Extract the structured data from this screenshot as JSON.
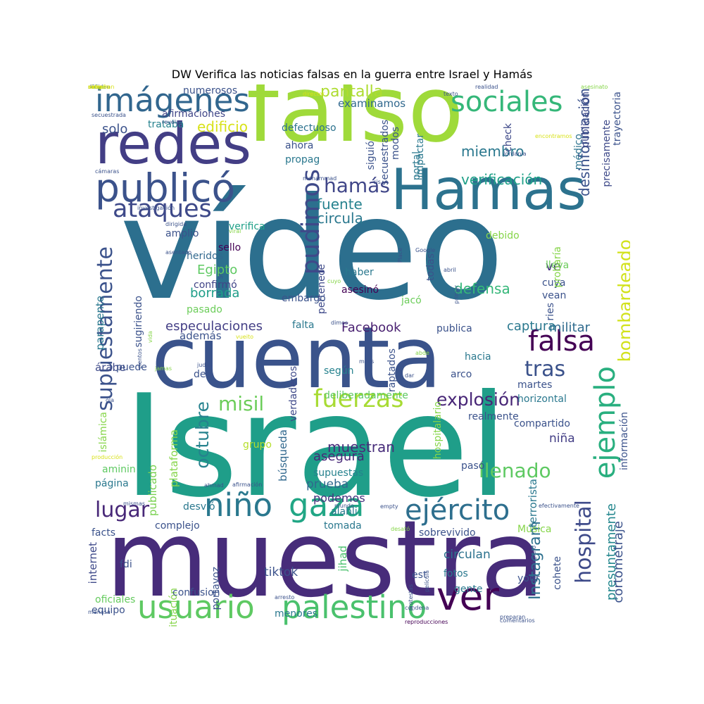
{
  "title": "DW Verifica las noticias falsas en la guerra entre Israel y Hamás",
  "words": [
    {
      "text": "vídeo",
      "color": "#2c6f8e"
    },
    {
      "text": "Israel",
      "color": "#1f9e89"
    },
    {
      "text": "muestra",
      "color": "#472c7a"
    },
    {
      "text": "cuenta",
      "color": "#3a538b"
    },
    {
      "text": "falso",
      "color": "#9fda3a"
    },
    {
      "text": "Hamas",
      "color": "#2c728e"
    },
    {
      "text": "redes",
      "color": "#433e85"
    },
    {
      "text": "publicó",
      "color": "#3b528b"
    },
    {
      "text": "imágenes",
      "color": "#31668e"
    },
    {
      "text": "sociales",
      "color": "#35b779"
    },
    {
      "text": "ver",
      "color": "#440154"
    },
    {
      "text": "usuario",
      "color": "#5ec962"
    },
    {
      "text": "palestino",
      "color": "#4ac16d"
    },
    {
      "text": "niño",
      "color": "#2a788e"
    },
    {
      "text": "gaza",
      "color": "#21a685"
    },
    {
      "text": "ejército",
      "color": "#2e6f8e"
    },
    {
      "text": "falsa",
      "color": "#440154"
    },
    {
      "text": "ataques",
      "color": "#3e4989"
    },
    {
      "text": "supuestamente",
      "color": "#3b528b"
    },
    {
      "text": "ejemplo",
      "color": "#29af7f"
    },
    {
      "text": "bombardeado",
      "color": "#d2e21b"
    },
    {
      "text": "fuerzas",
      "color": "#a8db34"
    },
    {
      "text": "hospital",
      "color": "#3e4a89"
    },
    {
      "text": "pudimos",
      "color": "#3e4989"
    },
    {
      "text": "lugar",
      "color": "#482878"
    },
    {
      "text": "misil",
      "color": "#6ccd5a"
    },
    {
      "text": "explosión",
      "color": "#482677"
    },
    {
      "text": "tras",
      "color": "#3b528b"
    },
    {
      "text": "hamás",
      "color": "#404688"
    },
    {
      "text": "llenado",
      "color": "#5ec962"
    },
    {
      "text": "octubre",
      "color": "#26828e"
    },
    {
      "text": "pantalla",
      "color": "#addc30"
    },
    {
      "text": "muestran",
      "color": "#472c7a"
    },
    {
      "text": "desinformación",
      "color": "#3b528b"
    },
    {
      "text": "Instagram",
      "color": "#2d708e"
    },
    {
      "text": "verificación",
      "color": "#1fa088"
    },
    {
      "text": "miembro",
      "color": "#2a788e"
    },
    {
      "text": "especulaciones",
      "color": "#433e85"
    },
    {
      "text": "Facebook",
      "color": "#481f70"
    },
    {
      "text": "presuntamente",
      "color": "#24878e"
    },
    {
      "text": "cortometraje",
      "color": "#3b528b"
    },
    {
      "text": "militar",
      "color": "#2f6b8e"
    },
    {
      "text": "captura",
      "color": "#2a788e"
    },
    {
      "text": "defensa",
      "color": "#35b779"
    },
    {
      "text": "circula",
      "color": "#2a788e"
    },
    {
      "text": "fuente",
      "color": "#26828e"
    },
    {
      "text": "edificio",
      "color": "#d8e219"
    },
    {
      "text": "solo",
      "color": "#3b528b"
    },
    {
      "text": "examinamos",
      "color": "#31688e"
    },
    {
      "text": "Egipto",
      "color": "#5ec962"
    },
    {
      "text": "borrada",
      "color": "#1f9e89"
    },
    {
      "text": "parapente",
      "color": "#2a788e"
    },
    {
      "text": "prueba",
      "color": "#31688e"
    },
    {
      "text": "podemos",
      "color": "#46327e"
    },
    {
      "text": "asegura",
      "color": "#482878"
    },
    {
      "text": "niña",
      "color": "#433e85"
    },
    {
      "text": "tiktok",
      "color": "#3b528b"
    },
    {
      "text": "circulan",
      "color": "#2c728e"
    },
    {
      "text": "internet",
      "color": "#3e4989"
    },
    {
      "text": "ve",
      "color": "#46327e"
    },
    {
      "text": "búsqueda",
      "color": "#31688e"
    },
    {
      "text": "plataforma",
      "color": "#86d549"
    },
    {
      "text": "publicado",
      "color": "#7ad151"
    },
    {
      "text": "jihad",
      "color": "#4ac16d"
    },
    {
      "text": "oficiales",
      "color": "#65cb5e"
    },
    {
      "text": "Música",
      "color": "#86d549"
    },
    {
      "text": "terrorista",
      "color": "#2a788e"
    },
    {
      "text": "árabe",
      "color": "#3e4a89"
    },
    {
      "text": "además",
      "color": "#3b528b"
    },
    {
      "text": "debido",
      "color": "#86d549"
    },
    {
      "text": "confirmó",
      "color": "#414487"
    },
    {
      "text": "heridos",
      "color": "#31688e"
    },
    {
      "text": "sello",
      "color": "#440154"
    },
    {
      "text": "amplio",
      "color": "#3b528b"
    },
    {
      "text": "verifica",
      "color": "#1fa088"
    },
    {
      "text": "trataba",
      "color": "#26828e"
    },
    {
      "text": "afirmaciones",
      "color": "#404688"
    },
    {
      "text": "numerosos",
      "color": "#3b528b"
    },
    {
      "text": "defectuoso",
      "color": "#2c728e"
    },
    {
      "text": "ahora",
      "color": "#3b528b"
    },
    {
      "text": "propag",
      "color": "#2a788e"
    },
    {
      "text": "impactar",
      "color": "#2a788e"
    },
    {
      "text": "portal",
      "color": "#2a788e"
    },
    {
      "text": "check",
      "color": "#3e4989"
    },
    {
      "text": "modos",
      "color": "#3b528b"
    },
    {
      "text": "siguió",
      "color": "#3b528b"
    },
    {
      "text": "secuestrados",
      "color": "#3b528b"
    },
    {
      "text": "trayectoria",
      "color": "#3b528b"
    },
    {
      "text": "publicación",
      "color": "#3e4989"
    },
    {
      "text": "médico",
      "color": "#2c728e"
    },
    {
      "text": "precisamente",
      "color": "#3e4989"
    },
    {
      "text": "haber",
      "color": "#2a788e"
    },
    {
      "text": "asesinó",
      "color": "#440154"
    },
    {
      "text": "pertenece",
      "color": "#3e4989"
    },
    {
      "text": "embargo",
      "color": "#3b528b"
    },
    {
      "text": "falta",
      "color": "#2a788e"
    },
    {
      "text": "pasado",
      "color": "#6ccd5a"
    },
    {
      "text": "sugiriendo",
      "color": "#3b528b"
    },
    {
      "text": "puede",
      "color": "#3b528b"
    },
    {
      "text": "deb",
      "color": "#3b528b"
    },
    {
      "text": "según",
      "color": "#26828e"
    },
    {
      "text": "verdaderos",
      "color": "#3e4989"
    },
    {
      "text": "raptados",
      "color": "#3b528b"
    },
    {
      "text": "deliberadamente",
      "color": "#5ec962"
    },
    {
      "text": "realmente",
      "color": "#3b528b"
    },
    {
      "text": "compartido",
      "color": "#3b528b"
    },
    {
      "text": "hacia",
      "color": "#2a788e"
    },
    {
      "text": "arco",
      "color": "#3b528b"
    },
    {
      "text": "martes",
      "color": "#3b528b"
    },
    {
      "text": "horizontal",
      "color": "#2a788e"
    },
    {
      "text": "publica",
      "color": "#3b528b"
    },
    {
      "text": "jacó",
      "color": "#6ccd5a"
    },
    {
      "text": "lleva",
      "color": "#6ccd5a"
    },
    {
      "text": "cuya",
      "color": "#3b528b"
    },
    {
      "text": "vean",
      "color": "#3b528b"
    },
    {
      "text": "probaría",
      "color": "#86d549"
    },
    {
      "text": "ries",
      "color": "#3b528b"
    },
    {
      "text": "todas",
      "color": "#3b528b"
    },
    {
      "text": "grupo",
      "color": "#b5de2b"
    },
    {
      "text": "supuestas",
      "color": "#26828e"
    },
    {
      "text": "hospitalario",
      "color": "#86d549"
    },
    {
      "text": "pasó",
      "color": "#3b528b"
    },
    {
      "text": "información",
      "color": "#3b528b"
    },
    {
      "text": "islámica",
      "color": "#86d549"
    },
    {
      "text": "aminin",
      "color": "#5ec962"
    },
    {
      "text": "página",
      "color": "#2a788e"
    },
    {
      "text": "desvió",
      "color": "#2a788e"
    },
    {
      "text": "complejo",
      "color": "#3b528b"
    },
    {
      "text": "tomada",
      "color": "#2a788e"
    },
    {
      "text": "alahli",
      "color": "#2a788e"
    },
    {
      "text": "sobrevivido",
      "color": "#3b528b"
    },
    {
      "text": "facts",
      "color": "#3b528b"
    },
    {
      "text": "fdi",
      "color": "#3b528b"
    },
    {
      "text": "portavoz",
      "color": "#3b528b"
    },
    {
      "text": "situación",
      "color": "#86d549"
    },
    {
      "text": "confusion",
      "color": "#3b528b"
    },
    {
      "text": "equipo",
      "color": "#3b528b"
    },
    {
      "text": "menores",
      "color": "#2a788e"
    },
    {
      "text": "est",
      "color": "#3b528b"
    },
    {
      "text": "fotos",
      "color": "#2a788e"
    },
    {
      "text": "gente",
      "color": "#2a788e"
    },
    {
      "text": "cohete",
      "color": "#3b528b"
    },
    {
      "text": "your",
      "color": "#3b528b"
    },
    {
      "text": "preparan",
      "color": "#3b528b"
    },
    {
      "text": "comentarios",
      "color": "#3b528b"
    },
    {
      "text": "reproducciones",
      "color": "#440154"
    },
    {
      "text": "condena",
      "color": "#3b528b"
    },
    {
      "text": "protestas",
      "color": "#3b528b"
    },
    {
      "text": "arresto",
      "color": "#3b528b"
    },
    {
      "text": "película",
      "color": "#3b528b"
    },
    {
      "text": "camarógrafo",
      "color": "#3b528b"
    },
    {
      "text": "desató",
      "color": "#86d549"
    },
    {
      "text": "efectivamente",
      "color": "#3b528b"
    },
    {
      "text": "empty",
      "color": "#3b528b"
    },
    {
      "text": "mundo",
      "color": "#3b528b"
    },
    {
      "text": "mismas",
      "color": "#3b528b"
    },
    {
      "text": "afirmación",
      "color": "#3b528b"
    },
    {
      "text": "ahmad",
      "color": "#3b528b"
    },
    {
      "text": "producción",
      "color": "#d8e219"
    },
    {
      "text": "manasa",
      "color": "#3b528b"
    },
    {
      "text": "ola",
      "color": "#3b528b"
    },
    {
      "text": "judía",
      "color": "#3b528b"
    },
    {
      "text": "jamas",
      "color": "#86d549"
    },
    {
      "text": "vueito",
      "color": "#d8e219"
    },
    {
      "text": "cientos",
      "color": "#3b528b"
    },
    {
      "text": "vida",
      "color": "#86d549"
    },
    {
      "text": "dimos",
      "color": "#3b528b"
    },
    {
      "text": "miles",
      "color": "#3b528b"
    },
    {
      "text": "dar",
      "color": "#3b528b"
    },
    {
      "text": "abde",
      "color": "#86d549"
    },
    {
      "text": "abril",
      "color": "#3b528b"
    },
    {
      "text": "primer",
      "color": "#3b528b"
    },
    {
      "text": "cuyo",
      "color": "#86d549"
    },
    {
      "text": "Place",
      "color": "#3b528b"
    },
    {
      "text": "St",
      "color": "#3b528b"
    },
    {
      "text": "Google",
      "color": "#3b528b"
    },
    {
      "text": "asentado",
      "color": "#3b528b"
    },
    {
      "text": "viral",
      "color": "#86d549"
    },
    {
      "text": "dirigida",
      "color": "#3b528b"
    },
    {
      "text": "investigación",
      "color": "#3b528b"
    },
    {
      "text": "revela",
      "color": "#3b528b"
    },
    {
      "text": "cámaras",
      "color": "#3b528b"
    },
    {
      "text": "mohammad",
      "color": "#3b528b"
    },
    {
      "text": "cis",
      "color": "#3b528b"
    },
    {
      "text": "director",
      "color": "#d8e219"
    },
    {
      "text": "Jordania",
      "color": "#3b528b"
    },
    {
      "text": "asesinato",
      "color": "#86d549"
    },
    {
      "text": "encontramos",
      "color": "#d8e219"
    },
    {
      "text": "secuestrada",
      "color": "#3b528b"
    },
    {
      "text": "texto",
      "color": "#3b528b"
    },
    {
      "text": "realidad",
      "color": "#3b528b"
    },
    {
      "text": "años",
      "color": "#3b528b"
    },
    {
      "text": "decir",
      "color": "#3b528b"
    },
    {
      "text": "señalan",
      "color": "#3b528b"
    },
    {
      "text": "online",
      "color": "#86d549"
    },
    {
      "text": "cine",
      "color": "#d8e219"
    },
    {
      "text": "aseguran",
      "color": "#d8e219"
    },
    {
      "text": "avne",
      "color": "#d8e219"
    },
    {
      "text": "extraño",
      "color": "#d8e219"
    }
  ]
}
